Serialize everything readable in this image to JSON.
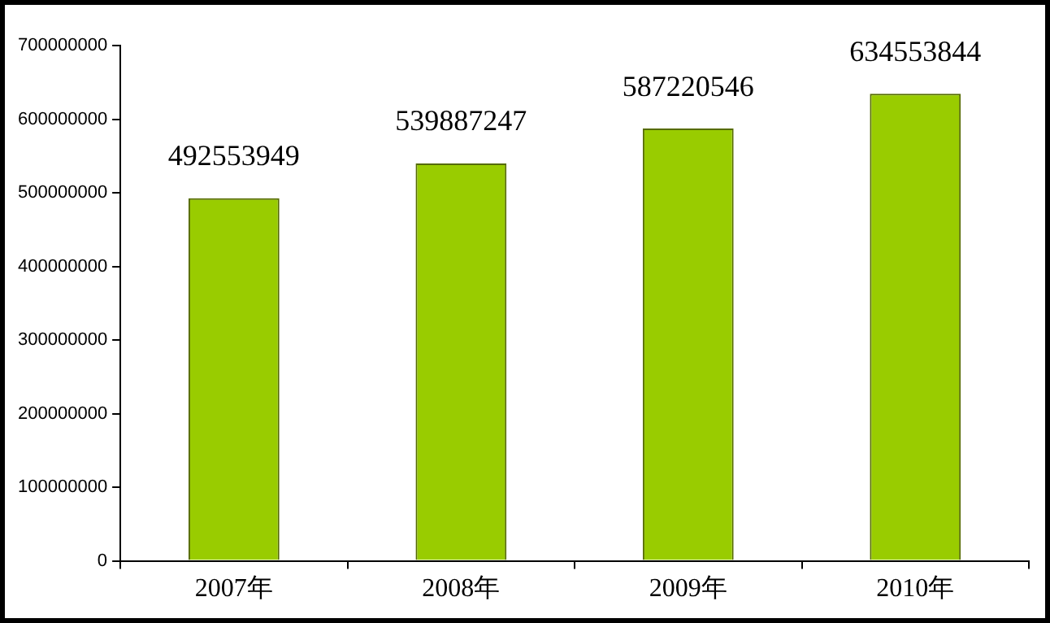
{
  "chart_data": {
    "type": "bar",
    "categories": [
      "2007年",
      "2008年",
      "2009年",
      "2010年"
    ],
    "values": [
      492553949,
      539887247,
      587220546,
      634553844
    ],
    "color": "#99cc00",
    "ylim": [
      0,
      700000000
    ],
    "yticks": [
      0,
      100000000,
      200000000,
      300000000,
      400000000,
      500000000,
      600000000,
      700000000
    ],
    "data_labels": true,
    "legend": false
  }
}
